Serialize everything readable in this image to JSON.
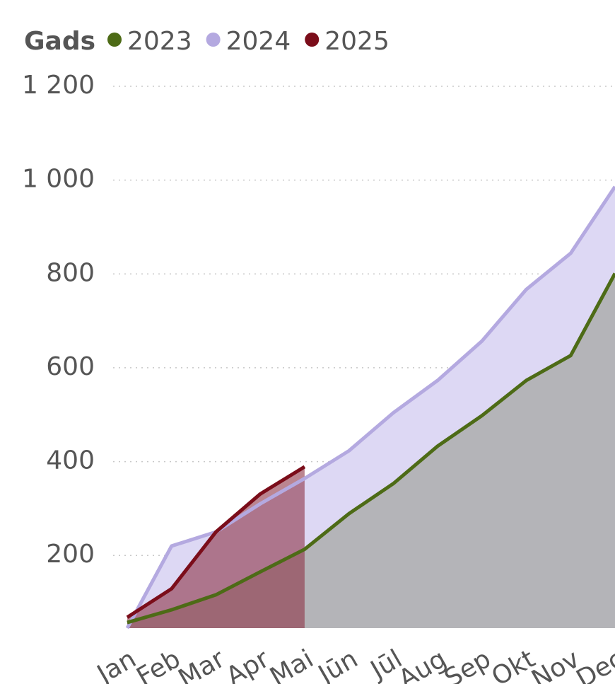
{
  "chart_data": {
    "type": "area",
    "legend_title": "Gads",
    "categories": [
      "Jan",
      "Feb",
      "Mar",
      "Apr",
      "Mai",
      "Jūn",
      "Jūl",
      "Aug",
      "Sep",
      "Okt",
      "Nov",
      "Dec"
    ],
    "series": [
      {
        "name": "2023",
        "color": "#4d6b16",
        "area_color": "#b4b4b8",
        "values": [
          57,
          84,
          116,
          165,
          213,
          289,
          353,
          433,
          498,
          573,
          626,
          801
        ]
      },
      {
        "name": "2024",
        "color": "#b4a9e0",
        "area_color": "#ddd8f4",
        "values": [
          45,
          220,
          250,
          310,
          364,
          423,
          504,
          573,
          657,
          767,
          844,
          986
        ]
      },
      {
        "name": "2025",
        "color": "#7b0d1a",
        "area_color": "#8e3446",
        "values": [
          68,
          129,
          250,
          331,
          389,
          null,
          null,
          null,
          null,
          null,
          null,
          null
        ]
      }
    ],
    "ylim": [
      45,
      1200
    ],
    "yticks": [
      {
        "value": 200,
        "label": "200"
      },
      {
        "value": 400,
        "label": "400"
      },
      {
        "value": 600,
        "label": "600"
      },
      {
        "value": 800,
        "label": "800"
      },
      {
        "value": 1000,
        "label": "1 000"
      },
      {
        "value": 1200,
        "label": "1 200"
      }
    ],
    "grid": true
  }
}
